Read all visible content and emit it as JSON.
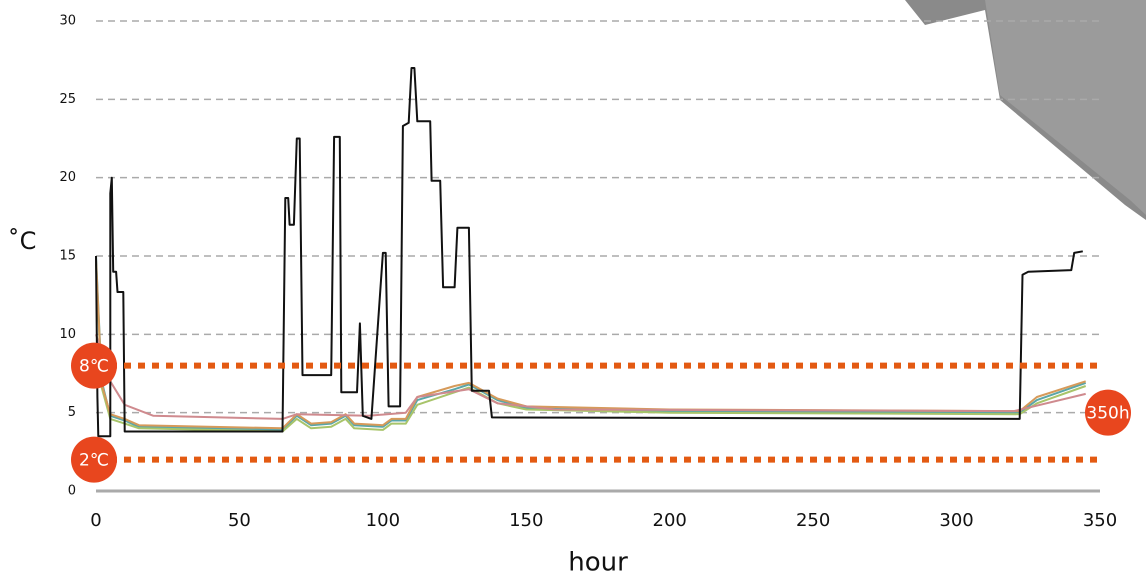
{
  "chart_data": {
    "type": "line",
    "ylabel": "˚C",
    "xlabel": "hour",
    "xlim": [
      0,
      350
    ],
    "xticks": [
      0,
      50,
      100,
      150,
      200,
      250,
      300,
      350
    ],
    "ylim": [
      0,
      30
    ],
    "yticks": [
      0,
      5,
      10,
      15,
      20,
      25,
      30
    ],
    "grid": true,
    "thresholds": [
      {
        "value": 8,
        "label": "8℃",
        "color": "#e35a12"
      },
      {
        "value": 2,
        "label": "2℃",
        "color": "#e35a12"
      }
    ],
    "annotations": [
      {
        "x": 350,
        "y": 5,
        "label": "350h",
        "color": "#e8461e"
      }
    ],
    "series": [
      {
        "color": "#5aa6a8",
        "x": [
          0,
          2,
          5,
          10,
          15,
          65,
          70,
          75,
          82,
          87,
          90,
          100,
          103,
          108,
          112,
          125,
          130,
          135,
          140,
          150,
          200,
          322,
          328,
          345
        ],
        "values": [
          15,
          7,
          4.8,
          4.5,
          4.1,
          3.9,
          4.8,
          4.2,
          4.3,
          4.8,
          4.2,
          4.1,
          4.5,
          4.5,
          5.8,
          6.5,
          6.8,
          6.3,
          5.8,
          5.3,
          5.1,
          5.0,
          5.8,
          6.9
        ]
      },
      {
        "color": "#a8c46a",
        "x": [
          0,
          2,
          5,
          10,
          15,
          65,
          70,
          75,
          82,
          87,
          90,
          100,
          103,
          108,
          112,
          125,
          130,
          135,
          140,
          150,
          200,
          322,
          328,
          345
        ],
        "values": [
          14.5,
          6.6,
          4.6,
          4.3,
          4.0,
          3.8,
          4.6,
          4.0,
          4.1,
          4.6,
          4.0,
          3.9,
          4.3,
          4.3,
          5.5,
          6.3,
          6.6,
          6.1,
          5.6,
          5.2,
          5.0,
          4.9,
          5.6,
          6.7
        ]
      },
      {
        "color": "#d69a5a",
        "x": [
          0,
          2,
          5,
          10,
          15,
          65,
          70,
          75,
          82,
          87,
          90,
          100,
          103,
          108,
          112,
          125,
          130,
          135,
          140,
          150,
          200,
          322,
          328,
          345
        ],
        "values": [
          14.8,
          6.8,
          4.9,
          4.6,
          4.2,
          4.0,
          4.9,
          4.3,
          4.4,
          4.9,
          4.3,
          4.2,
          4.6,
          4.6,
          6.0,
          6.7,
          6.9,
          6.4,
          5.9,
          5.4,
          5.2,
          5.1,
          6.0,
          7.0
        ]
      },
      {
        "color": "#cf8a8e",
        "x": [
          0,
          5,
          10,
          20,
          65,
          70,
          95,
          108,
          112,
          130,
          140,
          160,
          320,
          345
        ],
        "values": [
          10,
          7,
          5.5,
          4.8,
          4.6,
          4.9,
          4.8,
          5,
          6,
          6.5,
          5.6,
          5.2,
          5.1,
          6.2
        ]
      },
      {
        "color": "#111111",
        "x": [
          0,
          0.5,
          0.8,
          5,
          5,
          5.5,
          6,
          7,
          7.5,
          9.5,
          10,
          65,
          66,
          67,
          67.5,
          69,
          70,
          71,
          72,
          82,
          83,
          85,
          85.5,
          91,
          92,
          93,
          96,
          100,
          101,
          102,
          106,
          107,
          109,
          110,
          111,
          112,
          116.5,
          117,
          120,
          121,
          125,
          126,
          130,
          131,
          137,
          138,
          322,
          323,
          325,
          340,
          341,
          344
        ],
        "values": [
          15,
          6,
          3.5,
          3.5,
          19,
          20,
          14,
          14,
          12.7,
          12.7,
          3.8,
          3.8,
          18.7,
          18.7,
          17,
          17,
          22.5,
          22.5,
          7.4,
          7.4,
          22.6,
          22.6,
          6.3,
          6.3,
          10.7,
          4.8,
          4.6,
          15.2,
          15.2,
          5.4,
          5.4,
          23.3,
          23.5,
          27,
          27,
          23.6,
          23.6,
          19.8,
          19.8,
          13,
          13,
          16.8,
          16.8,
          6.4,
          6.4,
          4.7,
          4.6,
          13.8,
          14,
          14.1,
          15.2,
          15.3
        ]
      }
    ]
  }
}
